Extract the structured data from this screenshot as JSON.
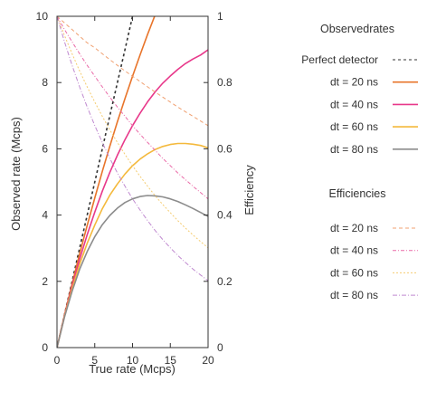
{
  "chart_data": {
    "type": "line",
    "xlabel": "True rate (Mcps)",
    "ylabel": "Observed rate (Mcps)",
    "y2label": "Efficiency",
    "xlim": [
      0,
      20
    ],
    "ylim": [
      0,
      10
    ],
    "y2lim": [
      0,
      1
    ],
    "xticks": [
      "0",
      "5",
      "10",
      "15",
      "20"
    ],
    "yticks": [
      "0",
      "2",
      "4",
      "6",
      "8",
      "10"
    ],
    "y2ticks": [
      "0",
      "0.2",
      "0.4",
      "0.6",
      "0.8",
      "1"
    ],
    "grid": false,
    "legend_groups": [
      {
        "title": "Observedrates",
        "entries": [
          {
            "label": "Perfect detector",
            "color": "#333333",
            "dash": "3,3"
          },
          {
            "label": "dt = 20 ns",
            "color": "#e8742a",
            "dash": ""
          },
          {
            "label": "dt = 40 ns",
            "color": "#e8388a",
            "dash": ""
          },
          {
            "label": "dt = 60 ns",
            "color": "#f4b93c",
            "dash": ""
          },
          {
            "label": "dt = 80 ns",
            "color": "#8c8c8c",
            "dash": ""
          }
        ]
      },
      {
        "title": "Efficiencies",
        "entries": [
          {
            "label": "dt = 20 ns",
            "color": "#f0a070",
            "dash": "4,3"
          },
          {
            "label": "dt = 40 ns",
            "color": "#ea6aa8",
            "dash": "4,2,1,2"
          },
          {
            "label": "dt = 60 ns",
            "color": "#f5cc70",
            "dash": "2,2"
          },
          {
            "label": "dt = 80 ns",
            "color": "#c08ad0",
            "dash": "5,2,1,2"
          }
        ]
      }
    ],
    "x": [
      0,
      1,
      2,
      3,
      4,
      5,
      6,
      7,
      8,
      9,
      10,
      11,
      12,
      13,
      14,
      15,
      16,
      17,
      18,
      19,
      20
    ],
    "series": [
      {
        "name": "Perfect detector",
        "axis": "y1",
        "color": "#333333",
        "dash": "3,3",
        "values": [
          0,
          1,
          2,
          3,
          4,
          5,
          6,
          7,
          8,
          9,
          10,
          null,
          null,
          null,
          null,
          null,
          null,
          null,
          null,
          null,
          null
        ]
      },
      {
        "name": "dt = 20 ns",
        "axis": "y1",
        "color": "#e8742a",
        "dash": "",
        "values": [
          0,
          0.98,
          1.92,
          2.83,
          3.69,
          4.52,
          5.32,
          6.08,
          6.82,
          7.52,
          8.19,
          8.84,
          9.46,
          10.05,
          null,
          null,
          null,
          null,
          null,
          null,
          null
        ]
      },
      {
        "name": "dt = 40 ns",
        "axis": "y1",
        "color": "#e8388a",
        "dash": "",
        "values": [
          0,
          0.96,
          1.85,
          2.66,
          3.41,
          4.09,
          4.72,
          5.29,
          5.81,
          6.28,
          6.7,
          7.08,
          7.42,
          7.72,
          7.98,
          8.2,
          8.4,
          8.57,
          8.71,
          8.83,
          8.99
        ]
      },
      {
        "name": "dt = 60 ns",
        "axis": "y1",
        "color": "#f4b93c",
        "dash": "",
        "values": [
          0,
          0.94,
          1.77,
          2.51,
          3.15,
          3.7,
          4.19,
          4.6,
          4.94,
          5.24,
          5.49,
          5.69,
          5.85,
          5.98,
          6.07,
          6.13,
          6.16,
          6.16,
          6.14,
          6.1,
          6.03
        ]
      },
      {
        "name": "dt = 80 ns",
        "axis": "y1",
        "color": "#8c8c8c",
        "dash": "",
        "values": [
          0,
          0.92,
          1.7,
          2.36,
          2.9,
          3.35,
          3.71,
          3.99,
          4.21,
          4.38,
          4.49,
          4.56,
          4.59,
          4.58,
          4.55,
          4.49,
          4.41,
          4.31,
          4.2,
          4.08,
          3.96
        ]
      },
      {
        "name": "dt = 20 ns",
        "axis": "y2",
        "color": "#f0a070",
        "dash": "4,3",
        "values": [
          1,
          0.98,
          0.96,
          0.94,
          0.92,
          0.905,
          0.887,
          0.869,
          0.852,
          0.835,
          0.819,
          0.803,
          0.787,
          0.771,
          0.756,
          0.741,
          0.726,
          0.712,
          0.698,
          0.684,
          0.67
        ]
      },
      {
        "name": "dt = 40 ns",
        "axis": "y2",
        "color": "#ea6aa8",
        "dash": "4,2,1,2",
        "values": [
          1,
          0.96,
          0.923,
          0.887,
          0.852,
          0.819,
          0.787,
          0.756,
          0.726,
          0.698,
          0.67,
          0.644,
          0.619,
          0.595,
          0.571,
          0.549,
          0.527,
          0.507,
          0.487,
          0.468,
          0.449
        ]
      },
      {
        "name": "dt = 60 ns",
        "axis": "y2",
        "color": "#f5cc70",
        "dash": "2,2",
        "values": [
          1,
          0.942,
          0.887,
          0.835,
          0.787,
          0.741,
          0.698,
          0.657,
          0.619,
          0.583,
          0.549,
          0.517,
          0.487,
          0.458,
          0.432,
          0.407,
          0.383,
          0.361,
          0.34,
          0.32,
          0.301
        ]
      },
      {
        "name": "dt = 80 ns",
        "axis": "y2",
        "color": "#c08ad0",
        "dash": "5,2,1,2",
        "values": [
          1,
          0.923,
          0.852,
          0.787,
          0.726,
          0.67,
          0.619,
          0.571,
          0.527,
          0.487,
          0.449,
          0.415,
          0.383,
          0.353,
          0.326,
          0.301,
          0.278,
          0.257,
          0.237,
          0.219,
          0.202
        ]
      }
    ]
  }
}
